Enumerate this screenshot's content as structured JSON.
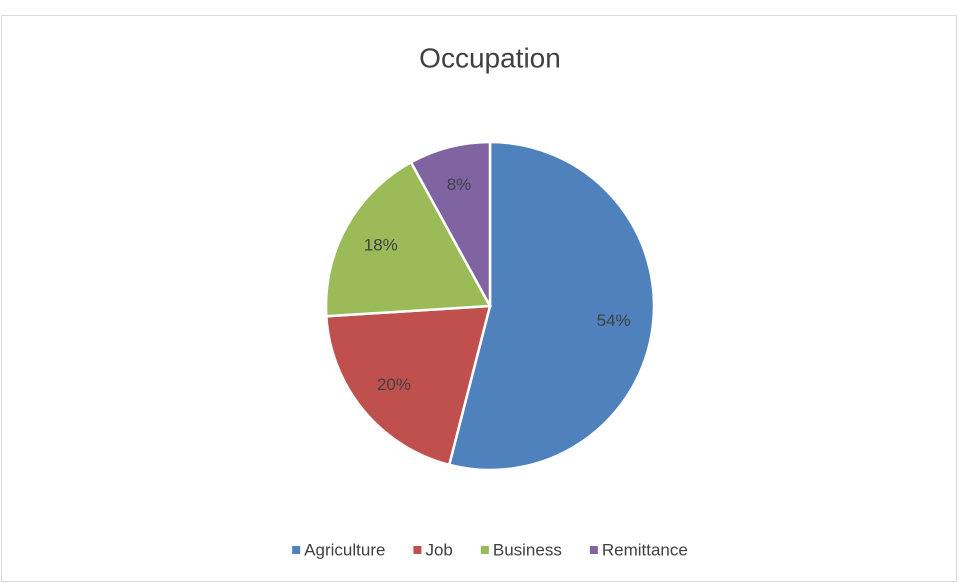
{
  "chart_data": {
    "type": "pie",
    "title": "Occupation",
    "categories": [
      "Agriculture",
      "Job",
      "Business",
      "Remittance"
    ],
    "values": [
      54,
      20,
      18,
      8
    ],
    "value_labels": [
      "54%",
      "20%",
      "18%",
      "8%"
    ],
    "colors": [
      "#4f81bd",
      "#c0504d",
      "#9bbb59",
      "#8064a2"
    ],
    "legend": "bottom"
  }
}
